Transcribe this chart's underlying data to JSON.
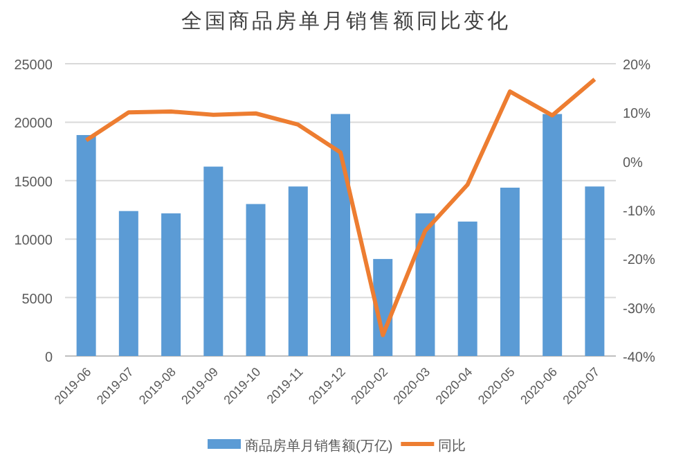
{
  "chart_data": {
    "type": "bar",
    "title": "全国商品房单月销售额同比变化",
    "categories": [
      "2019-06",
      "2019-07",
      "2019-08",
      "2019-09",
      "2019-10",
      "2019-11",
      "2019-12",
      "2020-02",
      "2020-03",
      "2020-04",
      "2020-05",
      "2020-06",
      "2020-07"
    ],
    "series": [
      {
        "name": "商品房单月销售额(万亿)",
        "color": "#5b9bd5",
        "values": [
          18900,
          12400,
          12200,
          16200,
          13000,
          14500,
          20700,
          8300,
          12200,
          11500,
          14400,
          20700,
          14500
        ]
      },
      {
        "name": "同比",
        "type": "line",
        "axis": "y2",
        "color": "#ed7d31",
        "values": [
          4.3,
          10.0,
          10.2,
          9.5,
          9.8,
          7.5,
          1.8,
          -35.7,
          -14.3,
          -4.8,
          14.3,
          9.4,
          16.8
        ]
      }
    ],
    "ylim": [
      0,
      25000
    ],
    "yticks": [
      0,
      5000,
      10000,
      15000,
      20000,
      25000
    ],
    "y2lim": [
      -40,
      20
    ],
    "y2ticks": [
      {
        "value": -40,
        "label": "-40%"
      },
      {
        "value": -30,
        "label": "-30%"
      },
      {
        "value": -20,
        "label": "-20%"
      },
      {
        "value": -10,
        "label": "-10%"
      },
      {
        "value": 0,
        "label": "0%"
      },
      {
        "value": 10,
        "label": "10%"
      },
      {
        "value": 20,
        "label": "20%"
      }
    ],
    "grid": "y",
    "legend": "bottom",
    "marker": "none",
    "line_style": "solid"
  }
}
